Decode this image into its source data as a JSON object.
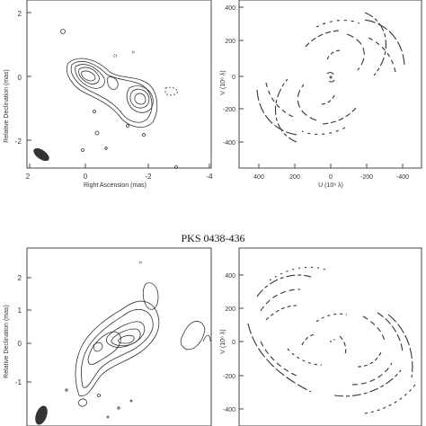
{
  "top_source_label": "",
  "bottom_source_label": "PKS 0438-436",
  "top_left_panel": {
    "ylabel": "Relative Declination (mas)",
    "xlabel": "Right Ascension (mas)",
    "y_ticks": [
      "2",
      "0",
      "-2"
    ],
    "x_ticks": [
      "2",
      "0",
      "-2",
      "-4"
    ]
  },
  "top_right_panel": {
    "ylabel": "V (10⁶ λ)",
    "xlabel": "U (10⁶ λ)",
    "y_ticks": [
      "400",
      "200",
      "0",
      "-200",
      "-400"
    ],
    "x_ticks": [
      "400",
      "200",
      "0",
      "-200",
      "-400"
    ]
  },
  "bottom_left_panel": {
    "ylabel": "Relative Declination (mas)",
    "y_ticks": [
      "2",
      "1",
      "0",
      "-1"
    ]
  },
  "bottom_right_panel": {
    "ylabel": "V (10⁶ λ)",
    "y_ticks": [
      "400",
      "200",
      "0",
      "-200",
      "-400"
    ]
  }
}
